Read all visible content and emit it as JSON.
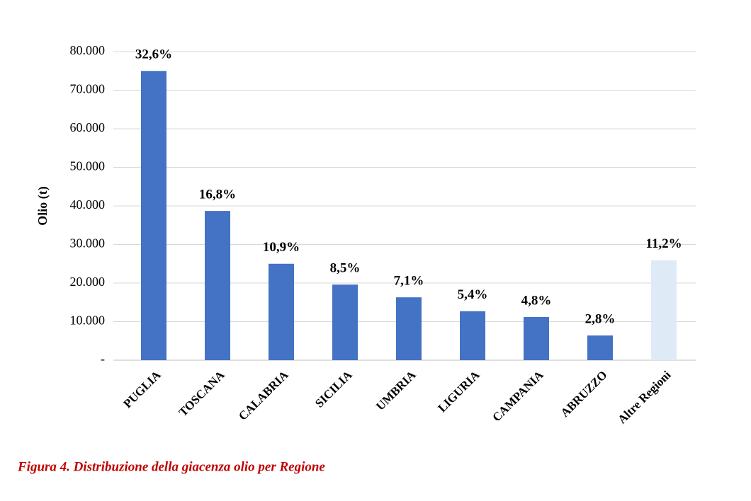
{
  "chart_data": {
    "type": "bar",
    "y_label": "Olio (t)",
    "categories": [
      "PUGLIA",
      "TOSCANA",
      "CALABRIA",
      "SICILIA",
      "UMBRIA",
      "LIGURIA",
      "CAMPANIA",
      "ABRUZZO",
      "Altre Regioni"
    ],
    "values": [
      75000,
      38700,
      25000,
      19600,
      16300,
      12700,
      11200,
      6400,
      25900
    ],
    "colors": [
      "#4472c4",
      "#4472c4",
      "#4472c4",
      "#4472c4",
      "#4472c4",
      "#4472c4",
      "#4472c4",
      "#4472c4",
      "#deebf7"
    ],
    "shares": {
      "values": [
        32.6,
        16.8,
        10.9,
        8.5,
        7.1,
        5.4,
        4.8,
        2.8,
        11.2
      ],
      "value_labels": [
        "32,6%",
        "16,8%",
        "10,9%",
        "8,5%",
        "7,1%",
        "5,4%",
        "4,8%",
        "2,8%",
        "11,2%"
      ]
    },
    "ylim": [
      0,
      80000
    ],
    "yticks": [
      {
        "value": 0,
        "label": "-"
      },
      {
        "value": 10000,
        "label": "10.000"
      },
      {
        "value": 20000,
        "label": "20.000"
      },
      {
        "value": 30000,
        "label": "30.000"
      },
      {
        "value": 40000,
        "label": "40.000"
      },
      {
        "value": 50000,
        "label": "50.000"
      },
      {
        "value": 60000,
        "label": "60.000"
      },
      {
        "value": 70000,
        "label": "70.000"
      },
      {
        "value": 80000,
        "label": "80.000"
      }
    ],
    "grid": true
  },
  "caption": "Figura 4. Distribuzione della giacenza olio per Regione"
}
